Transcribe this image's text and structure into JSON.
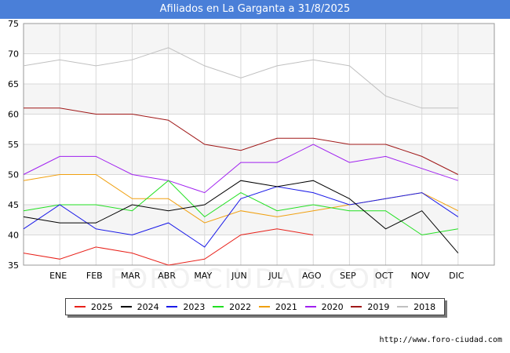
{
  "header": {
    "title": "Afiliados en La Garganta a 31/8/2025"
  },
  "watermark": "FORO-CIUDAD.COM",
  "source": "http://www.foro-ciudad.com",
  "chart_data": {
    "type": "line",
    "title": "Afiliados en La Garganta a 31/8/2025",
    "xlabel": "",
    "ylabel": "",
    "categories": [
      "",
      "ENE",
      "FEB",
      "MAR",
      "ABR",
      "MAY",
      "JUN",
      "JUL",
      "AGO",
      "SEP",
      "OCT",
      "NOV",
      "DIC"
    ],
    "ylim": [
      35,
      75
    ],
    "yticks": [
      35,
      40,
      45,
      50,
      55,
      60,
      65,
      70,
      75
    ],
    "grid": true,
    "legend_position": "bottom",
    "series": [
      {
        "name": "2025",
        "color": "#e8211a",
        "values": [
          37,
          36,
          38,
          37,
          35,
          36,
          40,
          41,
          40,
          null,
          null,
          null,
          null
        ]
      },
      {
        "name": "2024",
        "color": "#000000",
        "values": [
          43,
          42,
          42,
          45,
          44,
          45,
          49,
          48,
          49,
          46,
          41,
          44,
          37
        ]
      },
      {
        "name": "2023",
        "color": "#1a1ae8",
        "values": [
          41,
          45,
          41,
          40,
          42,
          38,
          46,
          48,
          47,
          45,
          46,
          47,
          43
        ]
      },
      {
        "name": "2022",
        "color": "#22e022",
        "values": [
          44,
          45,
          45,
          44,
          49,
          43,
          47,
          44,
          45,
          44,
          44,
          40,
          41
        ]
      },
      {
        "name": "2021",
        "color": "#f0a010",
        "values": [
          49,
          50,
          50,
          46,
          46,
          42,
          44,
          43,
          44,
          45,
          46,
          47,
          44
        ]
      },
      {
        "name": "2020",
        "color": "#a020f0",
        "values": [
          50,
          53,
          53,
          50,
          49,
          47,
          52,
          52,
          55,
          52,
          53,
          51,
          49
        ]
      },
      {
        "name": "2019",
        "color": "#a01818",
        "values": [
          61,
          61,
          60,
          60,
          59,
          55,
          54,
          56,
          56,
          55,
          55,
          53,
          50
        ]
      },
      {
        "name": "2018",
        "color": "#c0c0c0",
        "values": [
          68,
          69,
          68,
          69,
          71,
          68,
          66,
          68,
          69,
          68,
          63,
          61,
          61
        ]
      }
    ]
  }
}
